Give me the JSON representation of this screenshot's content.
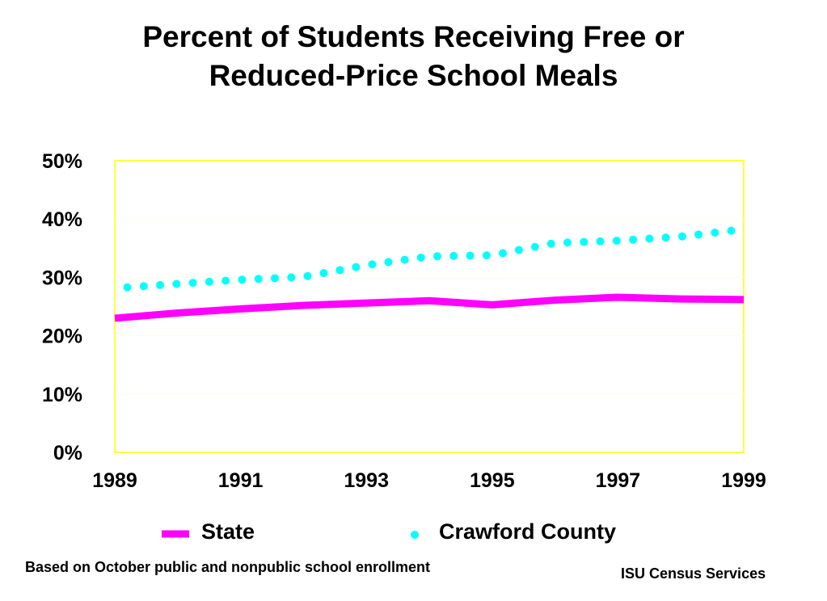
{
  "title_lines": [
    "Percent of Students Receiving Free or",
    "Reduced-Price School Meals"
  ],
  "footnote": "Based on October public and nonpublic school enrollment",
  "source": "ISU Census Services",
  "colors": {
    "state": "#ff00ff",
    "county": "#00ffff",
    "plot_border": "#ffff00"
  },
  "chart_data": {
    "type": "line",
    "title": "Percent of Students Receiving Free or Reduced-Price School Meals",
    "xlabel": "",
    "ylabel": "",
    "xlim": [
      1989,
      1999
    ],
    "ylim": [
      0,
      50
    ],
    "x_ticks": [
      1989,
      1991,
      1993,
      1995,
      1997,
      1999
    ],
    "x_tick_labels": [
      "1989",
      "1991",
      "1993",
      "1995",
      "1997",
      "1999"
    ],
    "y_ticks": [
      0,
      10,
      20,
      30,
      40,
      50
    ],
    "y_tick_labels": [
      "0%",
      "10%",
      "20%",
      "30%",
      "40%",
      "50%"
    ],
    "grid": false,
    "legend_position": "bottom",
    "series": [
      {
        "name": "State",
        "style": "solid",
        "color": "#ff00ff",
        "x": [
          1989,
          1990,
          1991,
          1992,
          1993,
          1994,
          1995,
          1996,
          1997,
          1998,
          1999
        ],
        "y": [
          23.0,
          23.9,
          24.6,
          25.2,
          25.6,
          26.0,
          25.3,
          26.1,
          26.6,
          26.3,
          26.2
        ]
      },
      {
        "name": "Crawford County",
        "style": "dotted",
        "color": "#00ffff",
        "x": [
          1989.2,
          1990,
          1991,
          1992,
          1993,
          1994,
          1995,
          1996,
          1997,
          1998,
          1998.8
        ],
        "y": [
          28.3,
          28.9,
          29.6,
          30.1,
          32.1,
          33.6,
          33.8,
          35.9,
          36.3,
          37.0,
          38.0
        ]
      }
    ]
  }
}
